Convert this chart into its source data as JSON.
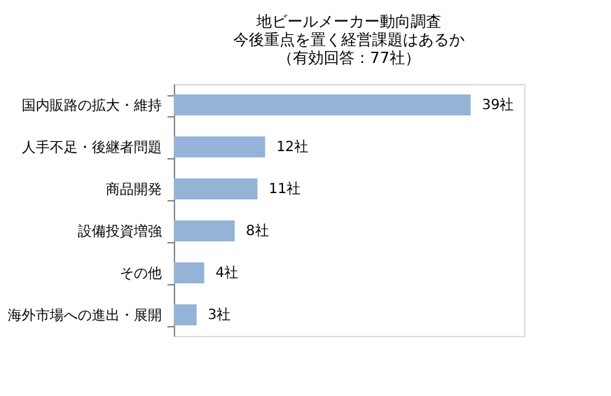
{
  "chart_data": {
    "type": "bar",
    "orientation": "horizontal",
    "title": "地ビールメーカー動向調査",
    "subtitle": "今後重点を置く経営課題はあるか",
    "annotations": [
      "（有効回答：77社）"
    ],
    "categories": [
      "国内販路の拡大・維持",
      "人手不足・後継者問題",
      "商品開発",
      "設備投資増強",
      "その他",
      "海外市場への進出・展開"
    ],
    "values": [
      39,
      12,
      11,
      8,
      4,
      3
    ],
    "value_labels": [
      "39社",
      "12社",
      "11社",
      "8社",
      "4社",
      "3社"
    ],
    "color": "#95b3d7"
  }
}
